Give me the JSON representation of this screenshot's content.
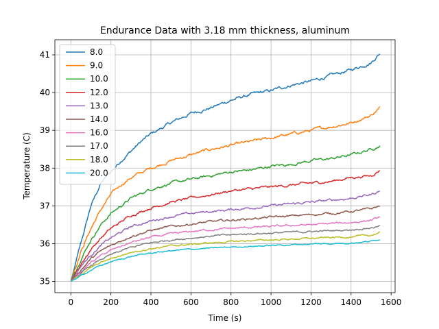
{
  "chart_data": {
    "type": "line",
    "title": "Endurance Data with 3.18 mm thickness, aluminum",
    "xlabel": "Time (s)",
    "ylabel": "Temperature (C)",
    "xlim": [
      -80,
      1620
    ],
    "ylim": [
      34.7,
      41.4
    ],
    "xticks": [
      0,
      200,
      400,
      600,
      800,
      1000,
      1200,
      1400,
      1600
    ],
    "yticks": [
      35,
      36,
      37,
      38,
      39,
      40,
      41
    ],
    "grid": true,
    "legend": "upper left",
    "x_start": 0,
    "x_end": 1545,
    "series": [
      {
        "name": "8.0",
        "color": "#1f77b4",
        "x": [
          0,
          50,
          100,
          150,
          200,
          250,
          300,
          350,
          400,
          500,
          600,
          700,
          800,
          900,
          1000,
          1100,
          1200,
          1300,
          1400,
          1500,
          1545
        ],
        "y": [
          35.0,
          36.0,
          37.0,
          37.6,
          37.9,
          38.2,
          38.45,
          38.7,
          38.9,
          39.2,
          39.45,
          39.6,
          39.8,
          39.95,
          40.05,
          40.2,
          40.3,
          40.45,
          40.6,
          40.8,
          41.05
        ]
      },
      {
        "name": "9.0",
        "color": "#ff7f0e",
        "x": [
          0,
          50,
          100,
          150,
          200,
          250,
          300,
          400,
          500,
          600,
          700,
          800,
          900,
          1000,
          1100,
          1200,
          1300,
          1400,
          1500,
          1545
        ],
        "y": [
          35.0,
          35.8,
          36.4,
          36.9,
          37.3,
          37.55,
          37.75,
          38.0,
          38.2,
          38.35,
          38.5,
          38.6,
          38.7,
          38.8,
          38.9,
          39.0,
          39.1,
          39.2,
          39.4,
          39.6
        ]
      },
      {
        "name": "10.0",
        "color": "#2ca02c",
        "x": [
          0,
          50,
          100,
          150,
          200,
          300,
          400,
          500,
          600,
          700,
          800,
          900,
          1000,
          1100,
          1200,
          1300,
          1400,
          1500,
          1545
        ],
        "y": [
          35.0,
          35.6,
          36.1,
          36.5,
          36.8,
          37.2,
          37.45,
          37.6,
          37.7,
          37.8,
          37.9,
          37.95,
          38.05,
          38.1,
          38.2,
          38.25,
          38.35,
          38.5,
          38.6
        ]
      },
      {
        "name": "12.0",
        "color": "#d62728",
        "x": [
          0,
          50,
          100,
          150,
          200,
          300,
          400,
          500,
          600,
          700,
          800,
          900,
          1000,
          1100,
          1200,
          1300,
          1400,
          1500,
          1545
        ],
        "y": [
          35.0,
          35.45,
          35.85,
          36.15,
          36.4,
          36.75,
          36.95,
          37.1,
          37.2,
          37.3,
          37.4,
          37.45,
          37.5,
          37.55,
          37.6,
          37.65,
          37.75,
          37.8,
          37.95
        ]
      },
      {
        "name": "13.0",
        "color": "#9467bd",
        "x": [
          0,
          50,
          100,
          150,
          200,
          300,
          400,
          500,
          600,
          700,
          800,
          900,
          1000,
          1100,
          1200,
          1300,
          1400,
          1500,
          1545
        ],
        "y": [
          35.0,
          35.4,
          35.7,
          35.95,
          36.15,
          36.45,
          36.6,
          36.72,
          36.8,
          36.85,
          36.9,
          36.95,
          37.0,
          37.05,
          37.1,
          37.15,
          37.2,
          37.3,
          37.4
        ]
      },
      {
        "name": "14.0",
        "color": "#8c564b",
        "x": [
          0,
          50,
          100,
          150,
          200,
          300,
          400,
          500,
          600,
          700,
          800,
          900,
          1000,
          1100,
          1200,
          1300,
          1400,
          1500,
          1545
        ],
        "y": [
          35.0,
          35.3,
          35.6,
          35.8,
          35.95,
          36.2,
          36.35,
          36.45,
          36.52,
          36.58,
          36.62,
          36.66,
          36.7,
          36.73,
          36.77,
          36.8,
          36.85,
          36.92,
          37.0
        ]
      },
      {
        "name": "16.0",
        "color": "#e377c2",
        "x": [
          0,
          50,
          100,
          150,
          200,
          300,
          400,
          500,
          600,
          700,
          800,
          900,
          1000,
          1100,
          1200,
          1300,
          1400,
          1500,
          1545
        ],
        "y": [
          35.0,
          35.25,
          35.5,
          35.68,
          35.82,
          36.03,
          36.17,
          36.25,
          36.32,
          36.37,
          36.4,
          36.43,
          36.45,
          36.48,
          36.5,
          36.53,
          36.56,
          36.62,
          36.7
        ]
      },
      {
        "name": "17.0",
        "color": "#7f7f7f",
        "x": [
          0,
          50,
          100,
          150,
          200,
          300,
          400,
          500,
          600,
          700,
          800,
          900,
          1000,
          1100,
          1200,
          1300,
          1400,
          1500,
          1545
        ],
        "y": [
          35.0,
          35.2,
          35.42,
          35.58,
          35.7,
          35.9,
          36.02,
          36.1,
          36.15,
          36.2,
          36.23,
          36.26,
          36.28,
          36.3,
          36.32,
          36.34,
          36.37,
          36.42,
          36.47
        ]
      },
      {
        "name": "18.0",
        "color": "#bcbd22",
        "x": [
          0,
          50,
          100,
          150,
          200,
          300,
          400,
          500,
          600,
          700,
          800,
          900,
          1000,
          1100,
          1200,
          1300,
          1400,
          1500,
          1545
        ],
        "y": [
          35.0,
          35.18,
          35.36,
          35.5,
          35.6,
          35.77,
          35.87,
          35.94,
          35.98,
          36.02,
          36.05,
          36.08,
          36.1,
          36.12,
          36.14,
          36.16,
          36.18,
          36.22,
          36.3
        ]
      },
      {
        "name": "20.0",
        "color": "#17becf",
        "x": [
          0,
          50,
          100,
          150,
          200,
          300,
          400,
          500,
          600,
          700,
          800,
          900,
          1000,
          1100,
          1200,
          1300,
          1400,
          1500,
          1545
        ],
        "y": [
          35.0,
          35.15,
          35.3,
          35.42,
          35.52,
          35.66,
          35.75,
          35.81,
          35.85,
          35.88,
          35.91,
          35.93,
          35.95,
          35.97,
          35.99,
          36.0,
          36.02,
          36.06,
          36.12
        ]
      }
    ]
  }
}
